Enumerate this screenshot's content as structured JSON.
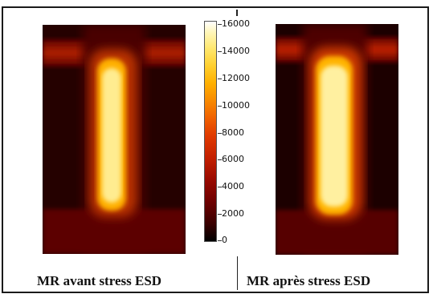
{
  "figure": {
    "caption_left": "MR avant stress ESD",
    "caption_right": "MR après stress ESD"
  },
  "colorbar": {
    "ticks": [
      "16000",
      "14000",
      "12000",
      "10000",
      "8000",
      "6000",
      "4000",
      "2000",
      "0"
    ],
    "min": 0,
    "max": 16000,
    "colormap": "hot"
  },
  "colors": {
    "background_dark": "#1c0000",
    "bar_red": "#8a1000",
    "hot_core": "#fff2a0"
  }
}
